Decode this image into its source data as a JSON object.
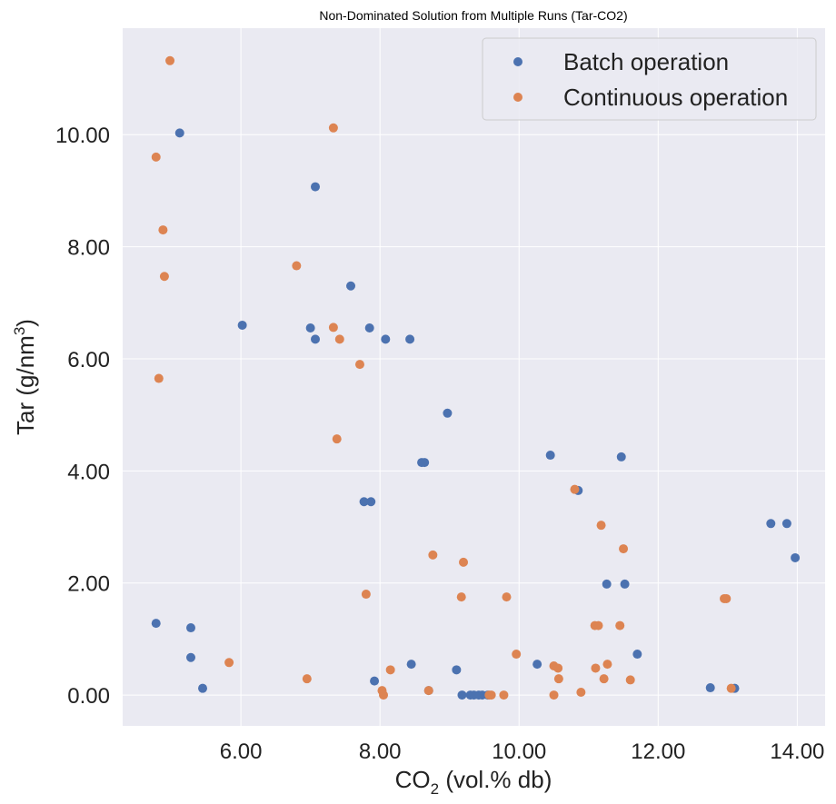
{
  "chart_data": {
    "type": "scatter",
    "title": "Non-Dominated Solution from Multiple Runs (Tar-CO2)",
    "xlabel": "CO",
    "xlabel_sub": "2",
    "xlabel_rest": " (vol.% db)",
    "ylabel": "Tar (g/nm",
    "ylabel_sup": "3",
    "ylabel_rest": ")",
    "xlim": [
      4.3,
      14.4
    ],
    "ylim": [
      -0.55,
      11.9
    ],
    "x_ticks": [
      6,
      8,
      10,
      12,
      14
    ],
    "x_tick_labels": [
      "6.00",
      "8.00",
      "10.00",
      "12.00",
      "14.00"
    ],
    "y_ticks": [
      0,
      2,
      4,
      6,
      8,
      10
    ],
    "y_tick_labels": [
      "0.00",
      "2.00",
      "4.00",
      "6.00",
      "8.00",
      "10.00"
    ],
    "grid": true,
    "legend_position": "top-right",
    "series": [
      {
        "name": "Batch operation",
        "color": "#4c72b0",
        "points": [
          [
            5.12,
            10.03
          ],
          [
            4.78,
            1.28
          ],
          [
            5.28,
            1.2
          ],
          [
            5.28,
            0.67
          ],
          [
            5.45,
            0.12
          ],
          [
            6.02,
            6.6
          ],
          [
            7.0,
            6.55
          ],
          [
            7.07,
            9.07
          ],
          [
            7.07,
            6.35
          ],
          [
            7.58,
            7.3
          ],
          [
            7.77,
            3.45
          ],
          [
            7.87,
            3.45
          ],
          [
            7.85,
            6.55
          ],
          [
            7.92,
            0.25
          ],
          [
            8.08,
            6.35
          ],
          [
            8.43,
            6.35
          ],
          [
            8.45,
            0.55
          ],
          [
            8.6,
            4.15
          ],
          [
            8.64,
            4.15
          ],
          [
            8.7,
            0.08
          ],
          [
            8.97,
            5.03
          ],
          [
            9.1,
            0.45
          ],
          [
            9.18,
            0.0
          ],
          [
            9.3,
            0.0
          ],
          [
            9.35,
            0.0
          ],
          [
            9.42,
            0.0
          ],
          [
            9.47,
            0.0
          ],
          [
            9.55,
            0.0
          ],
          [
            10.26,
            0.55
          ],
          [
            10.45,
            4.28
          ],
          [
            10.85,
            3.65
          ],
          [
            11.26,
            1.98
          ],
          [
            11.47,
            4.25
          ],
          [
            11.52,
            1.98
          ],
          [
            11.7,
            0.73
          ],
          [
            12.75,
            0.13
          ],
          [
            13.1,
            0.12
          ],
          [
            13.62,
            3.06
          ],
          [
            13.85,
            3.06
          ],
          [
            13.97,
            2.45
          ]
        ]
      },
      {
        "name": "Continuous operation",
        "color": "#dd8452",
        "points": [
          [
            4.98,
            11.32
          ],
          [
            4.78,
            9.6
          ],
          [
            4.88,
            8.3
          ],
          [
            4.9,
            7.47
          ],
          [
            4.82,
            5.65
          ],
          [
            5.83,
            0.58
          ],
          [
            6.8,
            7.66
          ],
          [
            6.95,
            0.29
          ],
          [
            7.33,
            10.12
          ],
          [
            7.33,
            6.56
          ],
          [
            7.38,
            4.57
          ],
          [
            7.42,
            6.35
          ],
          [
            7.71,
            5.9
          ],
          [
            7.8,
            1.8
          ],
          [
            8.03,
            0.08
          ],
          [
            8.05,
            0.0
          ],
          [
            8.15,
            0.45
          ],
          [
            8.7,
            0.08
          ],
          [
            8.76,
            2.5
          ],
          [
            9.17,
            1.75
          ],
          [
            9.2,
            2.37
          ],
          [
            9.57,
            0.0
          ],
          [
            9.6,
            0.0
          ],
          [
            9.78,
            0.0
          ],
          [
            9.82,
            1.75
          ],
          [
            9.96,
            0.73
          ],
          [
            10.5,
            0.52
          ],
          [
            10.5,
            0.0
          ],
          [
            10.56,
            0.48
          ],
          [
            10.57,
            0.29
          ],
          [
            10.8,
            3.67
          ],
          [
            10.89,
            0.05
          ],
          [
            11.09,
            1.24
          ],
          [
            11.1,
            0.48
          ],
          [
            11.14,
            1.24
          ],
          [
            11.18,
            3.03
          ],
          [
            11.22,
            0.29
          ],
          [
            11.27,
            0.55
          ],
          [
            11.45,
            1.24
          ],
          [
            11.5,
            2.61
          ],
          [
            11.6,
            0.27
          ],
          [
            12.95,
            1.72
          ],
          [
            12.98,
            1.72
          ],
          [
            13.05,
            0.12
          ]
        ]
      }
    ]
  }
}
